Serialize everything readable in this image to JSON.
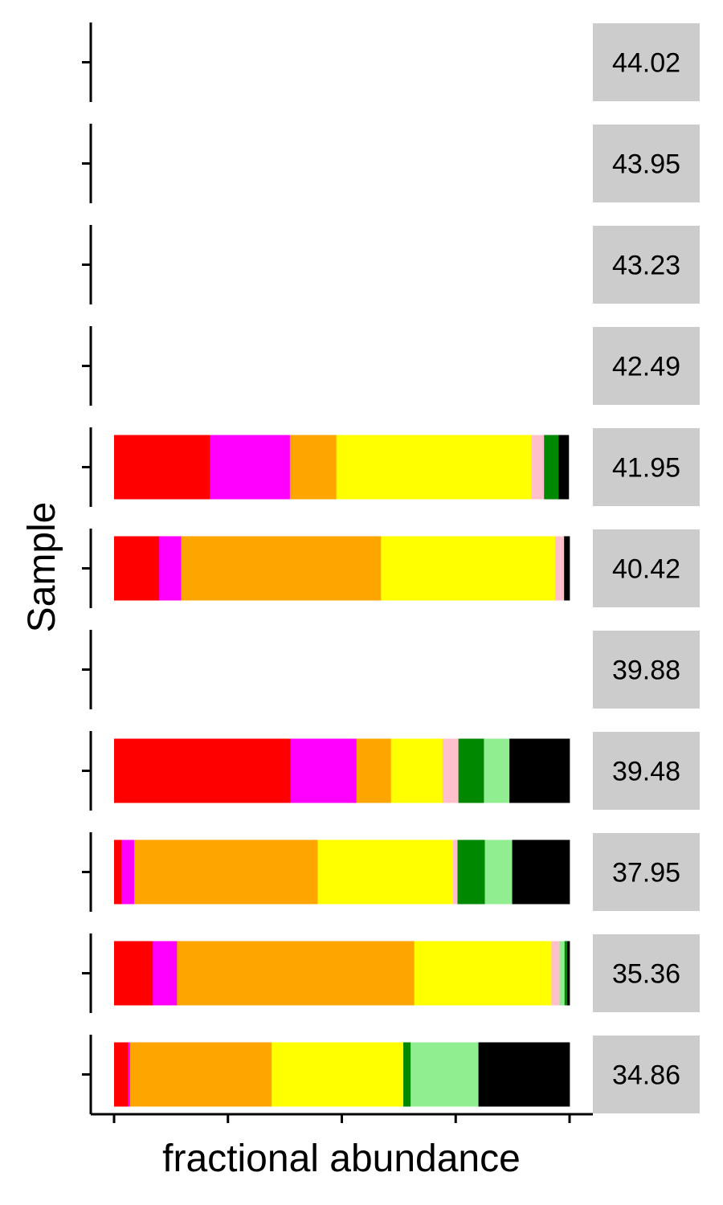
{
  "chart_data": {
    "type": "bar",
    "orientation": "horizontal",
    "stacked": true,
    "xlabel": "fractional abundance",
    "ylabel": "Sample",
    "xlim": [
      0,
      1
    ],
    "facet_labels": [
      "44.02",
      "43.95",
      "43.23",
      "42.49",
      "41.95",
      "40.42",
      "39.88",
      "39.48",
      "37.95",
      "35.36",
      "34.86"
    ],
    "facets": [
      {
        "label": "44.02",
        "segments": []
      },
      {
        "label": "43.95",
        "segments": []
      },
      {
        "label": "43.23",
        "segments": []
      },
      {
        "label": "42.49",
        "segments": []
      },
      {
        "label": "41.95",
        "segments": [
          {
            "color": "#ff0000",
            "value": 0.076
          },
          {
            "color": "#ff0000",
            "value": 0.134
          },
          {
            "color": "#ff00ff",
            "value": 0.042
          },
          {
            "color": "#ff00ff",
            "value": 0.134
          },
          {
            "color": "#ffa500",
            "value": 0.102
          },
          {
            "color": "#ffff00",
            "value": 0.095
          },
          {
            "color": "#ffff00",
            "value": 0.333
          },
          {
            "color": "#ffc0cb",
            "value": 0.028
          },
          {
            "color": "#008800",
            "value": 0.032
          },
          {
            "color": "#000000",
            "value": 0.022
          }
        ]
      },
      {
        "label": "40.42",
        "segments": [
          {
            "color": "#ff0000",
            "value": 0.099
          },
          {
            "color": "#ff00ff",
            "value": 0.048
          },
          {
            "color": "#ffa500",
            "value": 0.155
          },
          {
            "color": "#ffa500",
            "value": 0.284
          },
          {
            "color": "#ffff00",
            "value": 0.181
          },
          {
            "color": "#ffff00",
            "value": 0.201
          },
          {
            "color": "#ffc0cb",
            "value": 0.02
          },
          {
            "color": "#000000",
            "value": 0.012
          }
        ]
      },
      {
        "label": "39.88",
        "segments": []
      },
      {
        "label": "39.48",
        "segments": [
          {
            "color": "#ff0000",
            "value": 0.236
          },
          {
            "color": "#ff0000",
            "value": 0.151
          },
          {
            "color": "#ff00ff",
            "value": 0.145
          },
          {
            "color": "#ffa500",
            "value": 0.076
          },
          {
            "color": "#ffff00",
            "value": 0.113
          },
          {
            "color": "#ffc0cb",
            "value": 0.035
          },
          {
            "color": "#008800",
            "value": 0.056
          },
          {
            "color": "#90ee90",
            "value": 0.056
          },
          {
            "color": "#000000",
            "value": 0.132
          }
        ]
      },
      {
        "label": "37.95",
        "segments": [
          {
            "color": "#ff0000",
            "value": 0.016
          },
          {
            "color": "#ff00ff",
            "value": 0.028
          },
          {
            "color": "#ffa500",
            "value": 0.3
          },
          {
            "color": "#ffa500",
            "value": 0.103
          },
          {
            "color": "#ffff00",
            "value": 0.297
          },
          {
            "color": "#ffc0cb",
            "value": 0.01
          },
          {
            "color": "#008800",
            "value": 0.06
          },
          {
            "color": "#90ee90",
            "value": 0.06
          },
          {
            "color": "#000000",
            "value": 0.126
          }
        ]
      },
      {
        "label": "35.36",
        "segments": [
          {
            "color": "#ff0000",
            "value": 0.085
          },
          {
            "color": "#ff00ff",
            "value": 0.053
          },
          {
            "color": "#ffa500",
            "value": 0.137
          },
          {
            "color": "#ffa500",
            "value": 0.384
          },
          {
            "color": "#ffff00",
            "value": 0.301
          },
          {
            "color": "#ffc0cb",
            "value": 0.018
          },
          {
            "color": "#90ee90",
            "value": 0.011
          },
          {
            "color": "#008800",
            "value": 0.006
          },
          {
            "color": "#000000",
            "value": 0.005
          }
        ]
      },
      {
        "label": "34.86",
        "segments": [
          {
            "color": "#ff0000",
            "value": 0.03
          },
          {
            "color": "#ff00ff",
            "value": 0.005
          },
          {
            "color": "#ffa500",
            "value": 0.311
          },
          {
            "color": "#ffff00",
            "value": 0.289
          },
          {
            "color": "#008800",
            "value": 0.016
          },
          {
            "color": "#90ee90",
            "value": 0.149
          },
          {
            "color": "#000000",
            "value": 0.2
          }
        ]
      }
    ],
    "grid": false,
    "legend": "none"
  }
}
